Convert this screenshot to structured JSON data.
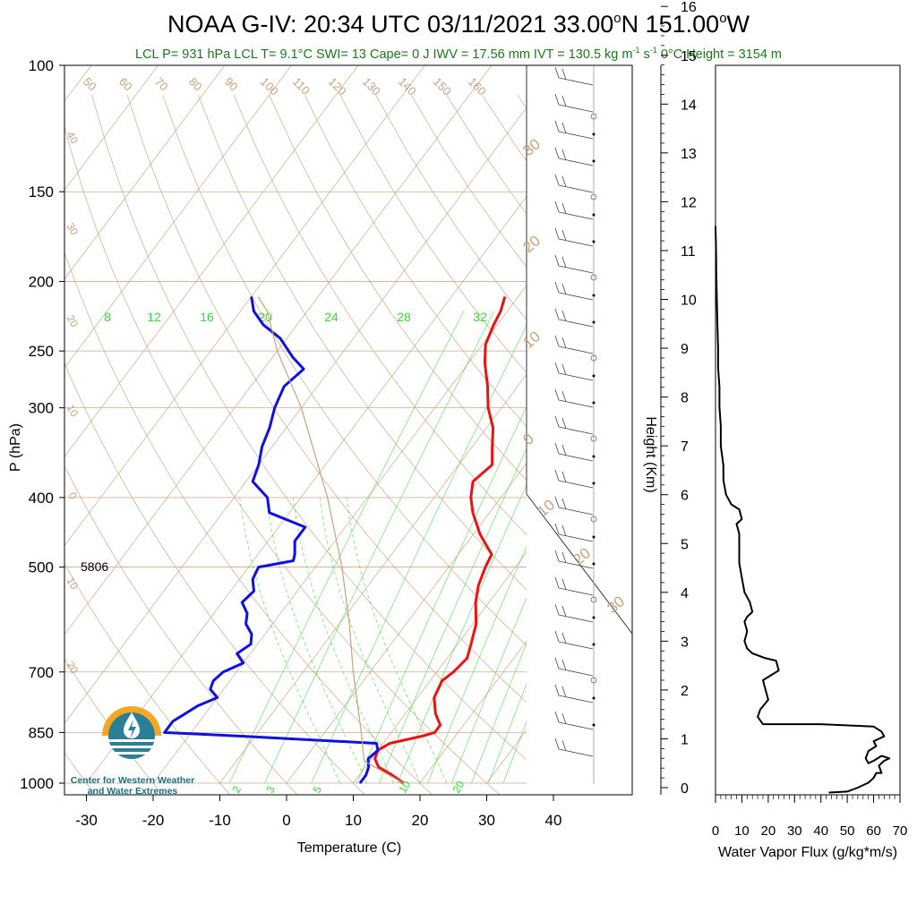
{
  "title": "NOAA G-IV: 20:34 UTC 03/11/2021  33.00°N 151.00°W",
  "title_parts": {
    "prefix": "NOAA G-IV: 20:34 UTC 03/11/2021  33.00",
    "deg1": "o",
    "mid": "N 151.00",
    "deg2": "o",
    "suffix": "W"
  },
  "subtitle": {
    "main": "LCL P= 931 hPa  LCL T= 9.1°C  SWI= 13  Cape= 0 J  IWV = 17.56 mm  IVT = 130.5 kg m",
    "sup1": "-1",
    "mid": " s",
    "sup2": "-1",
    "tail": "  0°C Height = 3154 m"
  },
  "height_500": "5806",
  "logo": {
    "line1": "Center for Western Weather",
    "line2": "and Water Extremes"
  },
  "colors": {
    "temperature": "#ee1111",
    "dewpoint": "#1010e0",
    "mixing_ratio": "#33dd33",
    "background_lines": "#c8a27c",
    "text_green": "#1a7a1a",
    "logo_orange": "#f5a623",
    "logo_teal": "#2a7f97"
  },
  "chart_data": [
    {
      "type": "skew-t",
      "ylabel": "P (hPa)",
      "xlabel": "Temperature (C)",
      "y_scale": "log",
      "ylim": [
        1000,
        100
      ],
      "xlim": [
        -35,
        50
      ],
      "pressure_ticks": [
        100,
        150,
        200,
        250,
        300,
        400,
        500,
        700,
        850,
        1000
      ],
      "temperature_ticks": [
        -30,
        -20,
        -10,
        0,
        10,
        20,
        30,
        40
      ],
      "mixing_ratio_labels_top": [
        "8",
        "12",
        "16",
        "20",
        "24",
        "28",
        "32"
      ],
      "mixing_ratio_labels_bottom": [
        "2",
        "3",
        "5",
        "10",
        "20"
      ],
      "dry_adiabat_labels": [
        "50",
        "60",
        "70",
        "80",
        "90",
        "100",
        "110",
        "120",
        "130",
        "140",
        "150",
        "160"
      ],
      "isotherm_labels": [
        "40",
        "30",
        "20",
        "10",
        "0",
        "10",
        "20"
      ],
      "moist_adiabat_labels": [
        "30",
        "20",
        "10",
        "0",
        "10",
        "20",
        "30"
      ],
      "series": [
        {
          "name": "Temperature",
          "points": [
            [
              1000,
              17.5
            ],
            [
              975,
              15.0
            ],
            [
              950,
              12.0
            ],
            [
              925,
              10.5
            ],
            [
              900,
              10.0
            ],
            [
              880,
              11.0
            ],
            [
              860,
              15.0
            ],
            [
              850,
              16.5
            ],
            [
              830,
              16.5
            ],
            [
              800,
              14.5
            ],
            [
              760,
              12.5
            ],
            [
              720,
              11.8
            ],
            [
              700,
              12.5
            ],
            [
              670,
              13.0
            ],
            [
              640,
              12.0
            ],
            [
              600,
              10.5
            ],
            [
              560,
              8.0
            ],
            [
              530,
              6.5
            ],
            [
              500,
              5.5
            ],
            [
              480,
              5.0
            ],
            [
              450,
              1.0
            ],
            [
              420,
              -2.5
            ],
            [
              400,
              -4.5
            ],
            [
              380,
              -6.0
            ],
            [
              360,
              -5.0
            ],
            [
              340,
              -7.0
            ],
            [
              320,
              -9.0
            ],
            [
              300,
              -12.0
            ],
            [
              280,
              -14.5
            ],
            [
              260,
              -17.5
            ],
            [
              245,
              -19.5
            ],
            [
              230,
              -20.5
            ],
            [
              220,
              -21.0
            ],
            [
              210,
              -22.0
            ]
          ]
        },
        {
          "name": "Dewpoint",
          "points": [
            [
              1000,
              11.0
            ],
            [
              975,
              11.0
            ],
            [
              950,
              10.5
            ],
            [
              925,
              9.5
            ],
            [
              900,
              10.0
            ],
            [
              880,
              9.0
            ],
            [
              860,
              -12.0
            ],
            [
              850,
              -24.0
            ],
            [
              820,
              -24.0
            ],
            [
              800,
              -23.0
            ],
            [
              780,
              -22.0
            ],
            [
              760,
              -20.0
            ],
            [
              740,
              -22.0
            ],
            [
              720,
              -22.5
            ],
            [
              700,
              -22.0
            ],
            [
              680,
              -20.0
            ],
            [
              660,
              -22.0
            ],
            [
              640,
              -21.0
            ],
            [
              620,
              -22.0
            ],
            [
              600,
              -24.0
            ],
            [
              580,
              -25.0
            ],
            [
              560,
              -27.0
            ],
            [
              540,
              -26.5
            ],
            [
              520,
              -28.0
            ],
            [
              500,
              -28.5
            ],
            [
              490,
              -24.0
            ],
            [
              480,
              -24.5
            ],
            [
              460,
              -26.0
            ],
            [
              440,
              -26.0
            ],
            [
              420,
              -33.0
            ],
            [
              400,
              -35.0
            ],
            [
              380,
              -39.0
            ],
            [
              360,
              -40.0
            ],
            [
              340,
              -41.5
            ],
            [
              320,
              -42.5
            ],
            [
              300,
              -44.0
            ],
            [
              280,
              -45.0
            ],
            [
              265,
              -44.0
            ],
            [
              255,
              -47.0
            ],
            [
              240,
              -51.0
            ],
            [
              230,
              -55.0
            ],
            [
              220,
              -58.0
            ],
            [
              210,
              -60.0
            ]
          ]
        },
        {
          "name": "Parcel",
          "points": [
            [
              1000,
              17.5
            ],
            [
              931,
              9.1
            ],
            [
              850,
              5.5
            ],
            [
              700,
              -2.5
            ],
            [
              600,
              -8.5
            ],
            [
              500,
              -16.0
            ],
            [
              400,
              -26.0
            ],
            [
              300,
              -40.0
            ],
            [
              250,
              -50.0
            ],
            [
              220,
              -56.0
            ],
            [
              210,
              -59.0
            ]
          ]
        }
      ]
    },
    {
      "type": "line",
      "ylabel": "Height (Km)",
      "xlabel": "Water Vapor Flux (g/kg*m/s)",
      "xlim": [
        0,
        70
      ],
      "ylim": [
        -0.2,
        16.4
      ],
      "xticks": [
        "0",
        "10",
        "20",
        "30",
        "40",
        "50",
        "60",
        "70"
      ],
      "yticks": [
        "0",
        "1",
        "2",
        "3",
        "4",
        "5",
        "6",
        "7",
        "8",
        "9",
        "10",
        "11",
        "12",
        "13",
        "14",
        "15",
        "16"
      ],
      "series": [
        {
          "points": [
            [
              43,
              -0.1
            ],
            [
              50,
              -0.08
            ],
            [
              54,
              0.0
            ],
            [
              58,
              0.1
            ],
            [
              60,
              0.2
            ],
            [
              61,
              0.3
            ],
            [
              63,
              0.3
            ],
            [
              62,
              0.45
            ],
            [
              64,
              0.55
            ],
            [
              66,
              0.6
            ],
            [
              63,
              0.65
            ],
            [
              60,
              0.55
            ],
            [
              58,
              0.5
            ],
            [
              57,
              0.6
            ],
            [
              58,
              0.75
            ],
            [
              61,
              0.85
            ],
            [
              60,
              0.95
            ],
            [
              64,
              1.05
            ],
            [
              63,
              1.15
            ],
            [
              60,
              1.25
            ],
            [
              40,
              1.3
            ],
            [
              18,
              1.3
            ],
            [
              16,
              1.45
            ],
            [
              17,
              1.6
            ],
            [
              20,
              1.8
            ],
            [
              19,
              2.0
            ],
            [
              18,
              2.2
            ],
            [
              21,
              2.3
            ],
            [
              24,
              2.4
            ],
            [
              23,
              2.6
            ],
            [
              19,
              2.65
            ],
            [
              14,
              2.75
            ],
            [
              12,
              2.85
            ],
            [
              11,
              3.0
            ],
            [
              12,
              3.2
            ],
            [
              11,
              3.4
            ],
            [
              12,
              3.5
            ],
            [
              14,
              3.6
            ],
            [
              13,
              3.8
            ],
            [
              11,
              4.0
            ],
            [
              10,
              4.3
            ],
            [
              9,
              4.6
            ],
            [
              9,
              4.9
            ],
            [
              9,
              5.2
            ],
            [
              8,
              5.4
            ],
            [
              10,
              5.5
            ],
            [
              9,
              5.7
            ],
            [
              6,
              5.8
            ],
            [
              4,
              6.0
            ],
            [
              3,
              6.3
            ],
            [
              3,
              6.6
            ],
            [
              2,
              7.0
            ],
            [
              2,
              7.4
            ],
            [
              1.5,
              7.8
            ],
            [
              1.5,
              8.2
            ],
            [
              1,
              8.6
            ],
            [
              1,
              9.0
            ],
            [
              0.7,
              9.5
            ],
            [
              0.5,
              10.0
            ],
            [
              0.3,
              10.5
            ],
            [
              0.2,
              11.0
            ],
            [
              0,
              11.5
            ]
          ]
        }
      ]
    }
  ]
}
